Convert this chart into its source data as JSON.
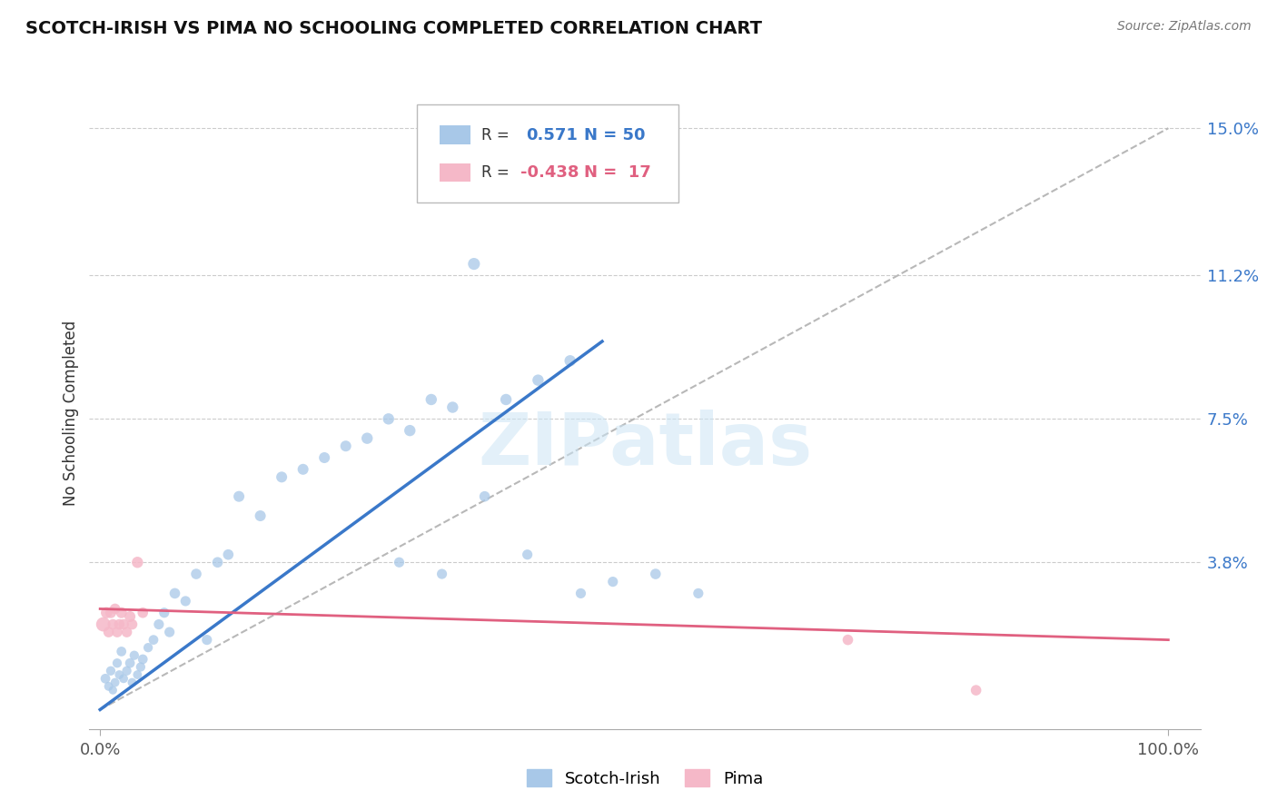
{
  "title": "SCOTCH-IRISH VS PIMA NO SCHOOLING COMPLETED CORRELATION CHART",
  "source_text": "Source: ZipAtlas.com",
  "ylabel": "No Schooling Completed",
  "R1": 0.571,
  "N1": 50,
  "R2": -0.438,
  "N2": 17,
  "xlim": [
    -0.01,
    1.03
  ],
  "ylim": [
    -0.005,
    0.158
  ],
  "x_ticks": [
    0.0,
    1.0
  ],
  "x_tick_labels": [
    "0.0%",
    "100.0%"
  ],
  "y_ticks": [
    0.038,
    0.075,
    0.112,
    0.15
  ],
  "y_tick_labels": [
    "3.8%",
    "7.5%",
    "11.2%",
    "15.0%"
  ],
  "color_blue": "#a8c8e8",
  "color_pink": "#f5b8c8",
  "color_line_blue": "#3a78c9",
  "color_line_pink": "#e06080",
  "color_diag": "#b8b8b8",
  "watermark": "ZIPatlas",
  "legend_label1": "Scotch-Irish",
  "legend_label2": "Pima",
  "scotch_irish_x": [
    0.005,
    0.008,
    0.01,
    0.012,
    0.014,
    0.016,
    0.018,
    0.02,
    0.022,
    0.025,
    0.028,
    0.03,
    0.032,
    0.035,
    0.038,
    0.04,
    0.045,
    0.05,
    0.055,
    0.06,
    0.065,
    0.07,
    0.08,
    0.09,
    0.1,
    0.11,
    0.12,
    0.13,
    0.15,
    0.17,
    0.19,
    0.21,
    0.23,
    0.25,
    0.27,
    0.29,
    0.31,
    0.33,
    0.35,
    0.38,
    0.41,
    0.44,
    0.28,
    0.32,
    0.36,
    0.4,
    0.45,
    0.48,
    0.52,
    0.56
  ],
  "scotch_irish_y": [
    0.008,
    0.006,
    0.01,
    0.005,
    0.007,
    0.012,
    0.009,
    0.015,
    0.008,
    0.01,
    0.012,
    0.007,
    0.014,
    0.009,
    0.011,
    0.013,
    0.016,
    0.018,
    0.022,
    0.025,
    0.02,
    0.03,
    0.028,
    0.035,
    0.018,
    0.038,
    0.04,
    0.055,
    0.05,
    0.06,
    0.062,
    0.065,
    0.068,
    0.07,
    0.075,
    0.072,
    0.08,
    0.078,
    0.115,
    0.08,
    0.085,
    0.09,
    0.038,
    0.035,
    0.055,
    0.04,
    0.03,
    0.033,
    0.035,
    0.03
  ],
  "scotch_irish_size": [
    60,
    50,
    55,
    45,
    50,
    55,
    50,
    60,
    50,
    55,
    60,
    50,
    55,
    50,
    55,
    60,
    55,
    60,
    65,
    65,
    65,
    70,
    65,
    70,
    65,
    70,
    70,
    75,
    75,
    75,
    75,
    75,
    75,
    80,
    80,
    80,
    80,
    80,
    90,
    80,
    80,
    80,
    65,
    65,
    70,
    65,
    65,
    65,
    70,
    65
  ],
  "pima_x": [
    0.003,
    0.006,
    0.008,
    0.01,
    0.012,
    0.014,
    0.016,
    0.018,
    0.02,
    0.022,
    0.025,
    0.028,
    0.03,
    0.035,
    0.04,
    0.7,
    0.82
  ],
  "pima_y": [
    0.022,
    0.025,
    0.02,
    0.025,
    0.022,
    0.026,
    0.02,
    0.022,
    0.025,
    0.022,
    0.02,
    0.024,
    0.022,
    0.038,
    0.025,
    0.018,
    0.005
  ],
  "pima_size": [
    130,
    80,
    70,
    75,
    70,
    70,
    70,
    70,
    75,
    70,
    70,
    75,
    70,
    80,
    70,
    70,
    70
  ],
  "blue_line_x": [
    0.0,
    0.47
  ],
  "blue_line_y": [
    0.0,
    0.095
  ],
  "pink_line_x": [
    0.0,
    1.0
  ],
  "pink_line_y": [
    0.026,
    0.018
  ],
  "diag_line_x": [
    0.0,
    1.0
  ],
  "diag_line_y": [
    0.0,
    0.15
  ]
}
